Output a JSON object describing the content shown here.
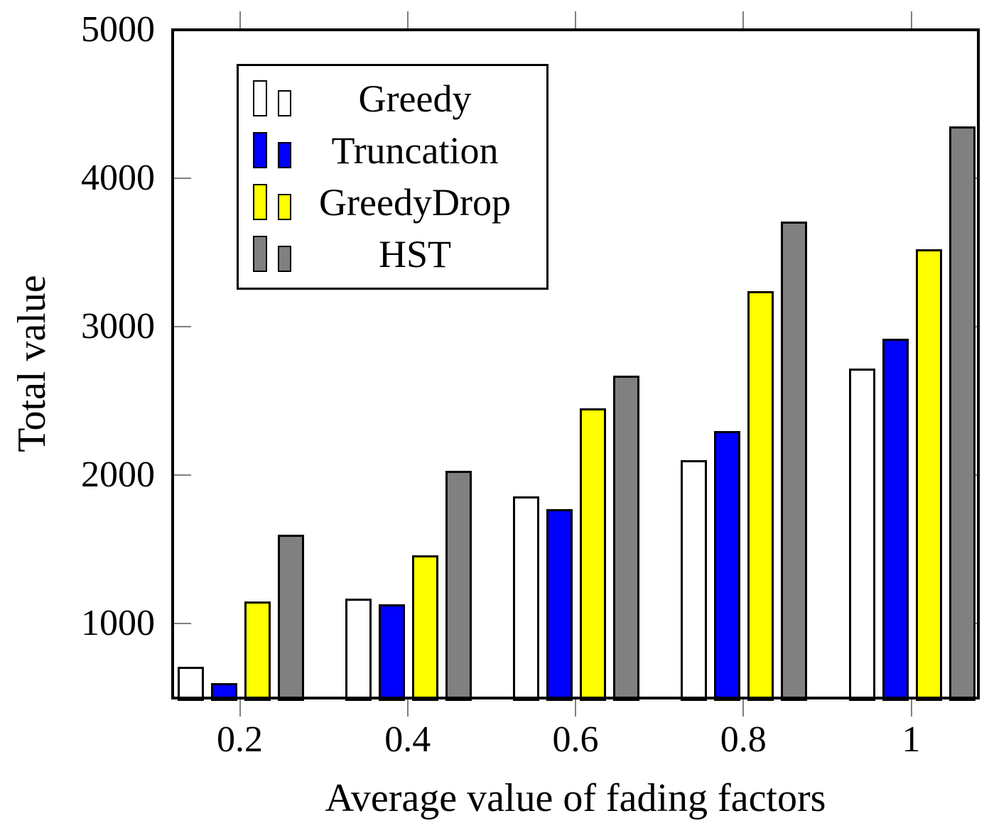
{
  "figure": {
    "background": "#ffffff"
  },
  "chart_data": {
    "type": "bar",
    "title": "",
    "xlabel": "Average value of fading factors",
    "ylabel": "Total value",
    "categories": [
      "0.2",
      "0.4",
      "0.6",
      "0.8",
      "1"
    ],
    "category_values": [
      0.2,
      0.4,
      0.6,
      0.8,
      1.0
    ],
    "series": [
      {
        "name": "Greedy",
        "color": "#ffffff",
        "values": [
          710,
          1170,
          1860,
          2100,
          2720
        ]
      },
      {
        "name": "Truncation",
        "color": "#0000ff",
        "values": [
          600,
          1130,
          1770,
          2300,
          2920
        ]
      },
      {
        "name": "GreedyDrop",
        "color": "#ffff00",
        "values": [
          1150,
          1460,
          2450,
          3240,
          3520
        ]
      },
      {
        "name": "HST",
        "color": "#808080",
        "values": [
          1600,
          2030,
          2670,
          3710,
          4350
        ]
      }
    ],
    "y_ticks": [
      1000,
      2000,
      3000,
      4000,
      5000
    ],
    "y_tick_labels": [
      "1000",
      "2000",
      "3000",
      "4000",
      "5000"
    ],
    "xlim": [
      0.12,
      1.08
    ],
    "ylim": [
      500,
      5000
    ],
    "grid": false,
    "legend": {
      "position": "top-left-inside",
      "entries": [
        "Greedy",
        "Truncation",
        "GreedyDrop",
        "HST"
      ]
    },
    "bar_outline_color": "#000000",
    "axis_color": "#000000",
    "tick_color": "#808080",
    "text_color": "#000000"
  }
}
